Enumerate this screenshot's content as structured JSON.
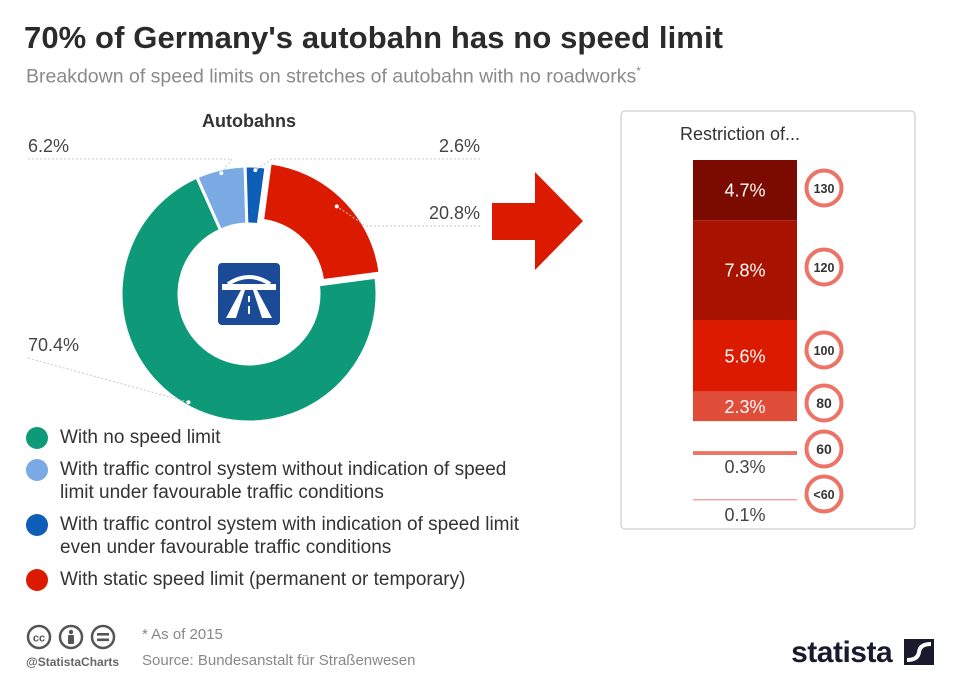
{
  "header": {
    "title": "70% of Germany's autobahn has no speed limit",
    "subtitle": "Breakdown of speed limits on stretches of autobahn with no roadworks",
    "subtitle_mark": "*"
  },
  "chart_data": [
    {
      "type": "pie",
      "title": "Autobahns",
      "categories": [
        "With no speed limit",
        "With traffic control system without indication of speed limit under favourable traffic conditions",
        "With traffic control system with indication of speed limit even under favourable traffic conditions",
        "With static speed limit (permanent or temporary)"
      ],
      "values": [
        70.4,
        6.2,
        2.6,
        20.8
      ],
      "labels": [
        "70.4%",
        "6.2%",
        "2.6%",
        "20.8%"
      ],
      "colors": [
        "#0e9a78",
        "#7aaae4",
        "#0e5db6",
        "#dc1a00"
      ]
    },
    {
      "type": "bar",
      "title": "Restriction of...",
      "categories": [
        "130",
        "120",
        "100",
        "80",
        "60",
        "<60"
      ],
      "values": [
        4.7,
        7.8,
        5.6,
        2.3,
        0.3,
        0.1
      ],
      "labels": [
        "4.7%",
        "7.8%",
        "5.6%",
        "2.3%",
        "0.3%",
        "0.1%"
      ],
      "colors": [
        "#7b0a00",
        "#a81300",
        "#dc1a00",
        "#e04e3a",
        "#eb7564",
        "#f2a79c"
      ]
    }
  ],
  "legend": [
    {
      "label": "With no speed limit",
      "color": "#0e9a78"
    },
    {
      "label": "With traffic control system without indication of speed limit under favourable traffic conditions",
      "color": "#7aaae4"
    },
    {
      "label": "With traffic control system with indication of speed limit even under favourable traffic conditions",
      "color": "#0e5db6"
    },
    {
      "label": "With static speed limit (permanent or temporary)",
      "color": "#dc1a00"
    }
  ],
  "footer": {
    "note": "* As of 2015",
    "source": "Source: Bundesanstalt für Straßenwesen",
    "handle": "@StatistaCharts",
    "brand": "statista"
  },
  "icons": {
    "center": "autobahn-sign-icon",
    "arrow": "right-arrow-icon",
    "license": [
      "cc-icon",
      "by-icon",
      "nd-icon"
    ],
    "brand": "statista-logo-icon"
  }
}
